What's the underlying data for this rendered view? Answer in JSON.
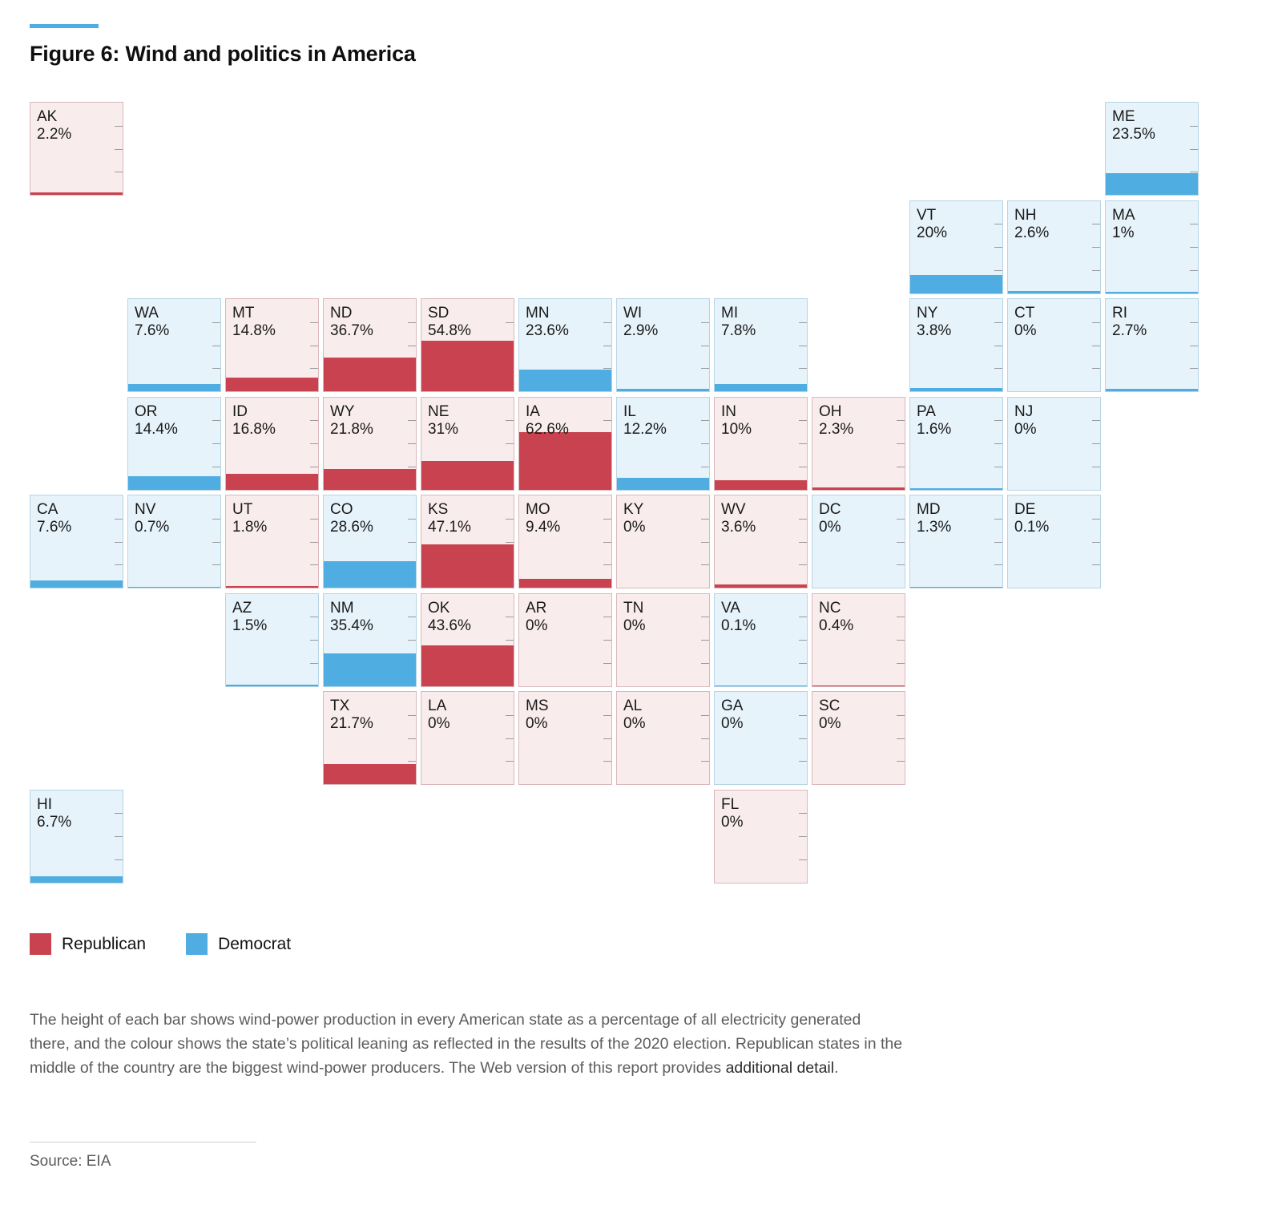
{
  "figure": {
    "title": "Figure 6: Wind and politics in America",
    "source": "Source: EIA"
  },
  "caption": {
    "before": "The height of each bar shows wind-power production in every American state as a percentage of all electricity generated there, and the colour shows the state’s political leaning as reflected in the results of the 2020 election. Republican states in the middle of the country are the biggest wind-power producers. The Web version of this report provides ",
    "link": "additional detail",
    "after": "."
  },
  "legend": [
    {
      "id": "republican",
      "label": "Republican"
    },
    {
      "id": "democrat",
      "label": "Democrat"
    }
  ],
  "colors": {
    "republican": {
      "bar": "#c8434f",
      "bg": "#f9ecec",
      "border": "#dab8bc"
    },
    "democrat": {
      "bar": "#4fade2",
      "bg": "#e6f3fb",
      "border": "#b7d5e6"
    },
    "tick": "#9b9b9b",
    "accent_rule": "#4fade2"
  },
  "chart_data": {
    "type": "bar",
    "subtype": "tile-grid-cartogram",
    "title": "Figure 6: Wind and politics in America",
    "unit": "% of electricity generated from wind",
    "tile_scale_max": 100,
    "legend_position": "bottom-left",
    "states": [
      {
        "abbr": "AK",
        "label": "2.2%",
        "value": 2.2,
        "party": "republican",
        "col": 1,
        "row": 1
      },
      {
        "abbr": "ME",
        "label": "23.5%",
        "value": 23.5,
        "party": "democrat",
        "col": 12,
        "row": 1
      },
      {
        "abbr": "VT",
        "label": "20%",
        "value": 20,
        "party": "democrat",
        "col": 10,
        "row": 2
      },
      {
        "abbr": "NH",
        "label": "2.6%",
        "value": 2.6,
        "party": "democrat",
        "col": 11,
        "row": 2
      },
      {
        "abbr": "MA",
        "label": "1%",
        "value": 1,
        "party": "democrat",
        "col": 12,
        "row": 2
      },
      {
        "abbr": "WA",
        "label": "7.6%",
        "value": 7.6,
        "party": "democrat",
        "col": 2,
        "row": 3
      },
      {
        "abbr": "MT",
        "label": "14.8%",
        "value": 14.8,
        "party": "republican",
        "col": 3,
        "row": 3
      },
      {
        "abbr": "ND",
        "label": "36.7%",
        "value": 36.7,
        "party": "republican",
        "col": 4,
        "row": 3
      },
      {
        "abbr": "SD",
        "label": "54.8%",
        "value": 54.8,
        "party": "republican",
        "col": 5,
        "row": 3
      },
      {
        "abbr": "MN",
        "label": "23.6%",
        "value": 23.6,
        "party": "democrat",
        "col": 6,
        "row": 3
      },
      {
        "abbr": "WI",
        "label": "2.9%",
        "value": 2.9,
        "party": "democrat",
        "col": 7,
        "row": 3
      },
      {
        "abbr": "MI",
        "label": "7.8%",
        "value": 7.8,
        "party": "democrat",
        "col": 8,
        "row": 3
      },
      {
        "abbr": "NY",
        "label": "3.8%",
        "value": 3.8,
        "party": "democrat",
        "col": 10,
        "row": 3
      },
      {
        "abbr": "CT",
        "label": "0%",
        "value": 0,
        "party": "democrat",
        "col": 11,
        "row": 3
      },
      {
        "abbr": "RI",
        "label": "2.7%",
        "value": 2.7,
        "party": "democrat",
        "col": 12,
        "row": 3
      },
      {
        "abbr": "OR",
        "label": "14.4%",
        "value": 14.4,
        "party": "democrat",
        "col": 2,
        "row": 4
      },
      {
        "abbr": "ID",
        "label": "16.8%",
        "value": 16.8,
        "party": "republican",
        "col": 3,
        "row": 4
      },
      {
        "abbr": "WY",
        "label": "21.8%",
        "value": 21.8,
        "party": "republican",
        "col": 4,
        "row": 4
      },
      {
        "abbr": "NE",
        "label": "31%",
        "value": 31,
        "party": "republican",
        "col": 5,
        "row": 4
      },
      {
        "abbr": "IA",
        "label": "62.6%",
        "value": 62.6,
        "party": "republican",
        "col": 6,
        "row": 4
      },
      {
        "abbr": "IL",
        "label": "12.2%",
        "value": 12.2,
        "party": "democrat",
        "col": 7,
        "row": 4
      },
      {
        "abbr": "IN",
        "label": "10%",
        "value": 10,
        "party": "republican",
        "col": 8,
        "row": 4
      },
      {
        "abbr": "OH",
        "label": "2.3%",
        "value": 2.3,
        "party": "republican",
        "col": 9,
        "row": 4
      },
      {
        "abbr": "PA",
        "label": "1.6%",
        "value": 1.6,
        "party": "democrat",
        "col": 10,
        "row": 4
      },
      {
        "abbr": "NJ",
        "label": "0%",
        "value": 0,
        "party": "democrat",
        "col": 11,
        "row": 4
      },
      {
        "abbr": "CA",
        "label": "7.6%",
        "value": 7.6,
        "party": "democrat",
        "col": 1,
        "row": 5
      },
      {
        "abbr": "NV",
        "label": "0.7%",
        "value": 0.7,
        "party": "democrat",
        "col": 2,
        "row": 5
      },
      {
        "abbr": "UT",
        "label": "1.8%",
        "value": 1.8,
        "party": "republican",
        "col": 3,
        "row": 5
      },
      {
        "abbr": "CO",
        "label": "28.6%",
        "value": 28.6,
        "party": "democrat",
        "col": 4,
        "row": 5
      },
      {
        "abbr": "KS",
        "label": "47.1%",
        "value": 47.1,
        "party": "republican",
        "col": 5,
        "row": 5
      },
      {
        "abbr": "MO",
        "label": "9.4%",
        "value": 9.4,
        "party": "republican",
        "col": 6,
        "row": 5
      },
      {
        "abbr": "KY",
        "label": "0%",
        "value": 0,
        "party": "republican",
        "col": 7,
        "row": 5
      },
      {
        "abbr": "WV",
        "label": "3.6%",
        "value": 3.6,
        "party": "republican",
        "col": 8,
        "row": 5
      },
      {
        "abbr": "DC",
        "label": "0%",
        "value": 0,
        "party": "democrat",
        "col": 9,
        "row": 5
      },
      {
        "abbr": "MD",
        "label": "1.3%",
        "value": 1.3,
        "party": "democrat",
        "col": 10,
        "row": 5
      },
      {
        "abbr": "DE",
        "label": "0.1%",
        "value": 0.1,
        "party": "democrat",
        "col": 11,
        "row": 5
      },
      {
        "abbr": "AZ",
        "label": "1.5%",
        "value": 1.5,
        "party": "democrat",
        "col": 3,
        "row": 6
      },
      {
        "abbr": "NM",
        "label": "35.4%",
        "value": 35.4,
        "party": "democrat",
        "col": 4,
        "row": 6
      },
      {
        "abbr": "OK",
        "label": "43.6%",
        "value": 43.6,
        "party": "republican",
        "col": 5,
        "row": 6
      },
      {
        "abbr": "AR",
        "label": "0%",
        "value": 0,
        "party": "republican",
        "col": 6,
        "row": 6
      },
      {
        "abbr": "TN",
        "label": "0%",
        "value": 0,
        "party": "republican",
        "col": 7,
        "row": 6
      },
      {
        "abbr": "VA",
        "label": "0.1%",
        "value": 0.1,
        "party": "democrat",
        "col": 8,
        "row": 6
      },
      {
        "abbr": "NC",
        "label": "0.4%",
        "value": 0.4,
        "party": "republican",
        "col": 9,
        "row": 6
      },
      {
        "abbr": "TX",
        "label": "21.7%",
        "value": 21.7,
        "party": "republican",
        "col": 4,
        "row": 7
      },
      {
        "abbr": "LA",
        "label": "0%",
        "value": 0,
        "party": "republican",
        "col": 5,
        "row": 7
      },
      {
        "abbr": "MS",
        "label": "0%",
        "value": 0,
        "party": "republican",
        "col": 6,
        "row": 7
      },
      {
        "abbr": "AL",
        "label": "0%",
        "value": 0,
        "party": "republican",
        "col": 7,
        "row": 7
      },
      {
        "abbr": "GA",
        "label": "0%",
        "value": 0,
        "party": "democrat",
        "col": 8,
        "row": 7
      },
      {
        "abbr": "SC",
        "label": "0%",
        "value": 0,
        "party": "republican",
        "col": 9,
        "row": 7
      },
      {
        "abbr": "HI",
        "label": "6.7%",
        "value": 6.7,
        "party": "democrat",
        "col": 1,
        "row": 8
      },
      {
        "abbr": "FL",
        "label": "0%",
        "value": 0,
        "party": "republican",
        "col": 8,
        "row": 8
      }
    ]
  }
}
